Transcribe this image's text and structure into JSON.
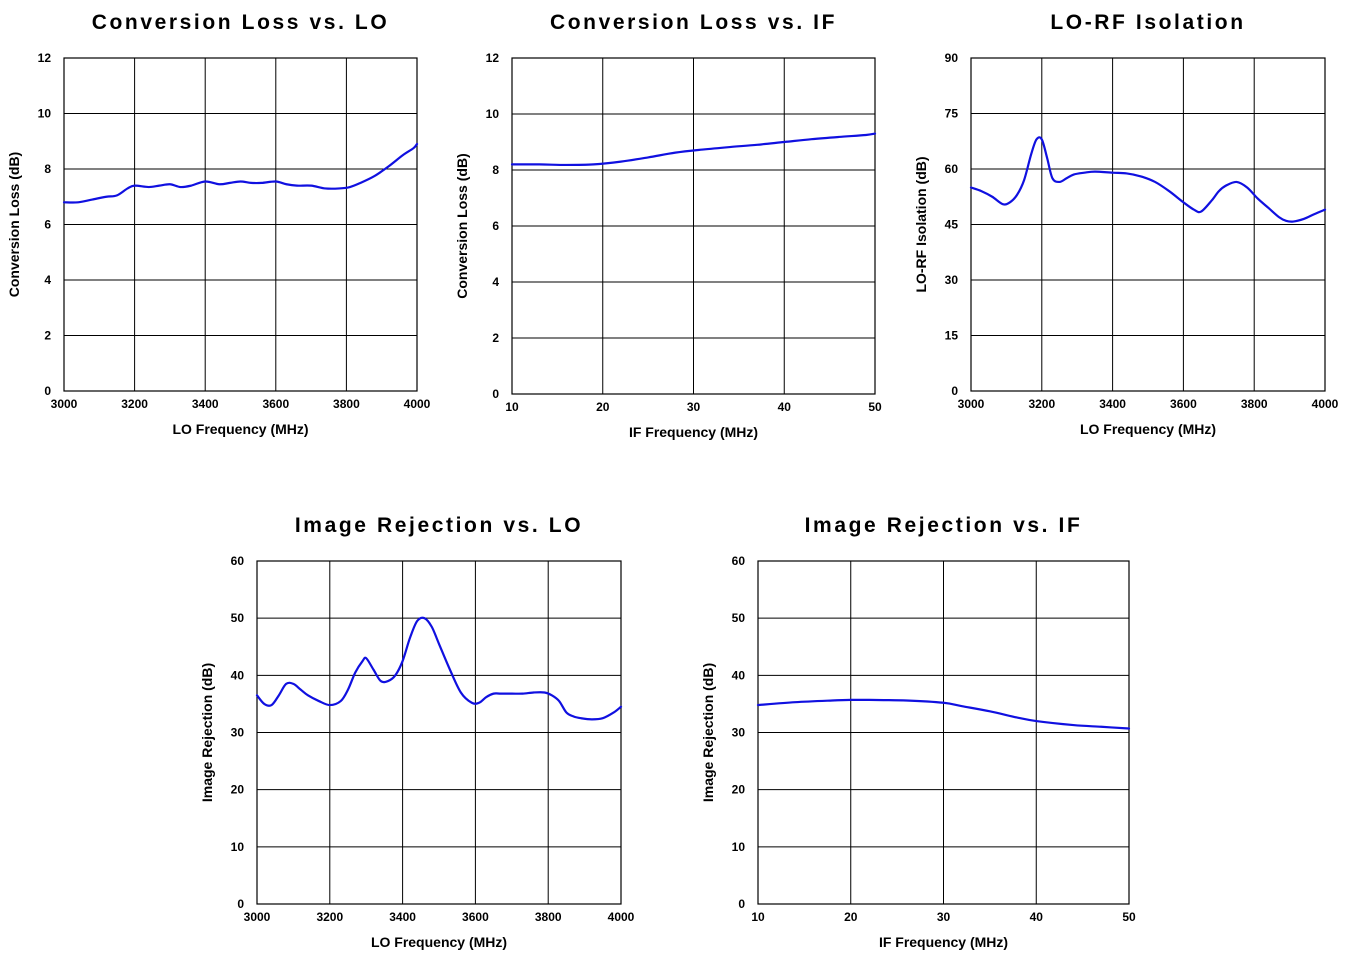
{
  "colors": {
    "series": "#1010e0",
    "grid": "#000000",
    "background": "#ffffff"
  },
  "chart_data": [
    {
      "type": "line",
      "title": "Conversion Loss vs. LO",
      "xlabel": "LO Frequency (MHz)",
      "ylabel": "Conversion Loss (dB)",
      "xlim": [
        3000,
        4000
      ],
      "ylim": [
        0,
        12
      ],
      "xticks": [
        "3000",
        "3200",
        "3400",
        "3600",
        "3800",
        "4000"
      ],
      "yticks": [
        "0",
        "2",
        "4",
        "6",
        "8",
        "10",
        "12"
      ],
      "grid": true,
      "series": [
        {
          "x": [
            3000,
            3040,
            3080,
            3120,
            3150,
            3180,
            3200,
            3240,
            3270,
            3300,
            3330,
            3360,
            3400,
            3440,
            3470,
            3500,
            3530,
            3560,
            3600,
            3630,
            3660,
            3700,
            3740,
            3780,
            3810,
            3840,
            3880,
            3920,
            3960,
            3990,
            4000
          ],
          "y": [
            6.8,
            6.8,
            6.9,
            7.0,
            7.05,
            7.3,
            7.4,
            7.35,
            7.4,
            7.45,
            7.35,
            7.4,
            7.55,
            7.45,
            7.5,
            7.55,
            7.5,
            7.5,
            7.55,
            7.45,
            7.4,
            7.4,
            7.3,
            7.3,
            7.35,
            7.5,
            7.75,
            8.1,
            8.5,
            8.75,
            8.9
          ]
        }
      ]
    },
    {
      "type": "line",
      "title": "Conversion Loss vs. IF",
      "xlabel": "IF Frequency (MHz)",
      "ylabel": "Conversion Loss (dB)",
      "xlim": [
        10,
        50
      ],
      "ylim": [
        0,
        12
      ],
      "xticks": [
        "10",
        "20",
        "30",
        "40",
        "50"
      ],
      "yticks": [
        "0",
        "2",
        "4",
        "6",
        "8",
        "10",
        "12"
      ],
      "grid": true,
      "series": [
        {
          "x": [
            10,
            13,
            16,
            19,
            22,
            25,
            28,
            31,
            34,
            37,
            40,
            43,
            46,
            49,
            50
          ],
          "y": [
            8.2,
            8.2,
            8.18,
            8.2,
            8.3,
            8.45,
            8.62,
            8.73,
            8.82,
            8.9,
            9.0,
            9.1,
            9.18,
            9.25,
            9.3
          ]
        }
      ]
    },
    {
      "type": "line",
      "title": "LO-RF Isolation",
      "xlabel": "LO Frequency (MHz)",
      "ylabel": "LO-RF Isolation (dB)",
      "xlim": [
        3000,
        4000
      ],
      "ylim": [
        0,
        90
      ],
      "xticks": [
        "3000",
        "3200",
        "3400",
        "3600",
        "3800",
        "4000"
      ],
      "yticks": [
        "0",
        "15",
        "30",
        "45",
        "60",
        "75",
        "90"
      ],
      "grid": true,
      "series": [
        {
          "x": [
            3000,
            3030,
            3060,
            3090,
            3110,
            3130,
            3150,
            3170,
            3185,
            3200,
            3215,
            3230,
            3250,
            3270,
            3290,
            3320,
            3350,
            3400,
            3440,
            3480,
            3520,
            3560,
            3600,
            3630,
            3650,
            3680,
            3700,
            3720,
            3750,
            3780,
            3810,
            3840,
            3870,
            3890,
            3910,
            3940,
            3970,
            4000
          ],
          "y": [
            55.0,
            54.0,
            52.5,
            50.5,
            51.0,
            53.0,
            57.0,
            64.0,
            68.0,
            68.0,
            63.0,
            57.5,
            56.5,
            57.5,
            58.5,
            59.0,
            59.3,
            59.0,
            58.8,
            58.0,
            56.5,
            54.0,
            51.0,
            49.0,
            48.5,
            51.5,
            54.0,
            55.5,
            56.5,
            55.0,
            52.0,
            49.5,
            47.0,
            46.0,
            45.8,
            46.5,
            47.8,
            49.0
          ]
        }
      ]
    },
    {
      "type": "line",
      "title": "Image Rejection vs. LO",
      "xlabel": "LO Frequency (MHz)",
      "ylabel": "Image Rejection (dB)",
      "xlim": [
        3000,
        4000
      ],
      "ylim": [
        0,
        60
      ],
      "xticks": [
        "3000",
        "3200",
        "3400",
        "3600",
        "3800",
        "4000"
      ],
      "yticks": [
        "0",
        "10",
        "20",
        "30",
        "40",
        "50",
        "60"
      ],
      "grid": true,
      "series": [
        {
          "x": [
            3000,
            3020,
            3040,
            3060,
            3080,
            3100,
            3120,
            3140,
            3170,
            3200,
            3230,
            3250,
            3270,
            3290,
            3300,
            3320,
            3340,
            3360,
            3380,
            3400,
            3420,
            3440,
            3460,
            3480,
            3500,
            3530,
            3560,
            3590,
            3610,
            3630,
            3650,
            3670,
            3700,
            3730,
            3760,
            3790,
            3810,
            3830,
            3850,
            3870,
            3890,
            3920,
            3950,
            3980,
            4000
          ],
          "y": [
            36.5,
            35.0,
            34.8,
            36.5,
            38.5,
            38.5,
            37.5,
            36.5,
            35.5,
            34.8,
            35.5,
            37.5,
            40.5,
            42.5,
            43.0,
            41.0,
            39.0,
            39.0,
            40.0,
            42.5,
            46.5,
            49.5,
            50.0,
            48.5,
            45.5,
            41.0,
            37.0,
            35.2,
            35.2,
            36.2,
            36.8,
            36.8,
            36.8,
            36.8,
            37.0,
            37.0,
            36.5,
            35.5,
            33.5,
            32.8,
            32.5,
            32.3,
            32.5,
            33.5,
            34.5
          ]
        }
      ]
    },
    {
      "type": "line",
      "title": "Image Rejection vs. IF",
      "xlabel": "IF Frequency (MHz)",
      "ylabel": "Image Rejection (dB)",
      "xlim": [
        10,
        50
      ],
      "ylim": [
        0,
        60
      ],
      "xticks": [
        "10",
        "20",
        "30",
        "40",
        "50"
      ],
      "yticks": [
        "0",
        "10",
        "20",
        "30",
        "40",
        "50",
        "60"
      ],
      "grid": true,
      "series": [
        {
          "x": [
            10,
            14,
            18,
            20,
            22,
            26,
            30,
            32,
            35,
            38,
            40,
            44,
            47,
            50
          ],
          "y": [
            34.8,
            35.3,
            35.6,
            35.7,
            35.7,
            35.6,
            35.2,
            34.6,
            33.7,
            32.6,
            32.0,
            31.3,
            31.0,
            30.7
          ]
        }
      ]
    }
  ]
}
